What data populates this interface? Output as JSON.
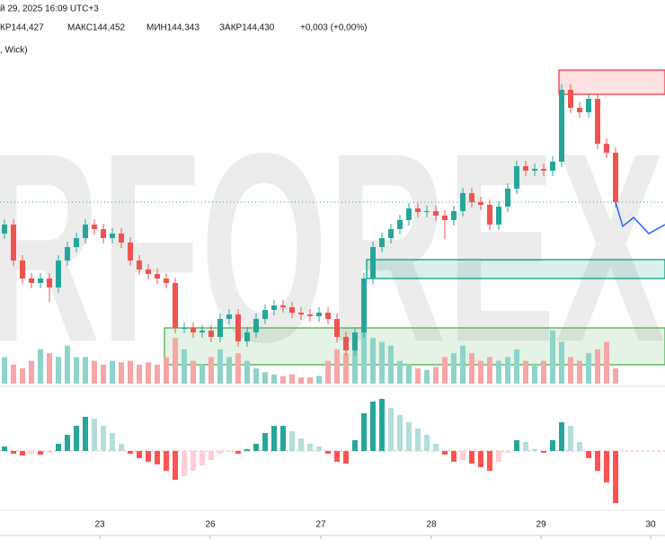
{
  "chart_data": {
    "type": "candlestick",
    "header": {
      "datetime": "й 29, 2025 16:09 UTC+3",
      "ohlc": [
        "КР144,427",
        "МАКС144,452",
        "МИН144,343",
        "ЗАКР144,430"
      ],
      "change": "+0,003 (+0,00%)",
      "subtitle": ", Wick)"
    },
    "watermark": "RFOREX",
    "xlim": [
      -0.5,
      73.5
    ],
    "ylim": [
      143.4,
      145.55
    ],
    "xticks": [
      {
        "value": 10.6,
        "label": "23"
      },
      {
        "value": 22.9,
        "label": "26"
      },
      {
        "value": 35.2,
        "label": "27"
      },
      {
        "value": 47.5,
        "label": "28"
      },
      {
        "value": 59.7,
        "label": "29"
      },
      {
        "value": 71.9,
        "label": "30"
      }
    ],
    "up_color": "#26a69a",
    "down_color": "#ef5350",
    "candles": [
      [
        144.25,
        144.33,
        144.22,
        144.3
      ],
      [
        144.3,
        144.33,
        144.07,
        144.1
      ],
      [
        144.1,
        144.13,
        143.97,
        144.0
      ],
      [
        144.0,
        144.03,
        143.945,
        143.975
      ],
      [
        143.975,
        144.03,
        143.945,
        144.0
      ],
      [
        144.0,
        144.03,
        143.87,
        143.95
      ],
      [
        143.95,
        144.13,
        143.92,
        144.1
      ],
      [
        144.1,
        144.205,
        144.07,
        144.175
      ],
      [
        144.175,
        144.255,
        144.145,
        144.225
      ],
      [
        144.225,
        144.33,
        144.195,
        144.3
      ],
      [
        144.3,
        144.33,
        144.245,
        144.275
      ],
      [
        144.275,
        144.305,
        144.195,
        144.225
      ],
      [
        144.225,
        144.28,
        144.195,
        144.25
      ],
      [
        144.25,
        144.28,
        144.17,
        144.2
      ],
      [
        144.2,
        144.23,
        144.07,
        144.1
      ],
      [
        144.1,
        144.13,
        144.02,
        144.05
      ],
      [
        144.05,
        144.08,
        143.995,
        144.025
      ],
      [
        144.025,
        144.055,
        143.97,
        144.0
      ],
      [
        144.0,
        144.03,
        143.945,
        143.975
      ],
      [
        143.975,
        144.005,
        143.695,
        143.725
      ],
      [
        143.725,
        143.755,
        143.695,
        143.725
      ],
      [
        143.725,
        143.755,
        143.67,
        143.7
      ],
      [
        143.7,
        143.74,
        143.67,
        143.71
      ],
      [
        143.71,
        143.74,
        143.645,
        143.675
      ],
      [
        143.675,
        143.805,
        143.645,
        143.775
      ],
      [
        143.775,
        143.83,
        143.745,
        143.8
      ],
      [
        143.8,
        143.83,
        143.62,
        143.65
      ],
      [
        143.65,
        143.73,
        143.62,
        143.7
      ],
      [
        143.7,
        143.805,
        143.67,
        143.775
      ],
      [
        143.775,
        143.855,
        143.745,
        143.825
      ],
      [
        143.825,
        143.88,
        143.795,
        143.85
      ],
      [
        143.85,
        143.88,
        143.81,
        143.84
      ],
      [
        143.84,
        143.87,
        143.78,
        143.81
      ],
      [
        143.81,
        143.84,
        143.77,
        143.8
      ],
      [
        143.8,
        143.83,
        143.76,
        143.79
      ],
      [
        143.79,
        143.84,
        143.76,
        143.81
      ],
      [
        143.81,
        143.84,
        143.745,
        143.775
      ],
      [
        143.775,
        143.805,
        143.645,
        143.675
      ],
      [
        143.675,
        143.705,
        143.57,
        143.6
      ],
      [
        143.6,
        143.73,
        143.57,
        143.7
      ],
      [
        143.7,
        144.03,
        143.67,
        144.0
      ],
      [
        144.0,
        144.205,
        143.97,
        144.175
      ],
      [
        144.175,
        144.255,
        144.145,
        144.225
      ],
      [
        144.225,
        144.305,
        144.195,
        144.275
      ],
      [
        144.275,
        144.355,
        144.245,
        144.325
      ],
      [
        144.325,
        144.42,
        144.295,
        144.39
      ],
      [
        144.39,
        144.42,
        144.34,
        144.37
      ],
      [
        144.37,
        144.405,
        144.34,
        144.375
      ],
      [
        144.375,
        144.405,
        144.32,
        144.35
      ],
      [
        144.35,
        144.38,
        144.22,
        144.325
      ],
      [
        144.325,
        144.405,
        144.295,
        144.375
      ],
      [
        144.375,
        144.505,
        144.345,
        144.475
      ],
      [
        144.475,
        144.505,
        144.395,
        144.425
      ],
      [
        144.425,
        144.455,
        144.38,
        144.41
      ],
      [
        144.41,
        144.44,
        144.27,
        144.3
      ],
      [
        144.3,
        144.43,
        144.27,
        144.4
      ],
      [
        144.4,
        144.53,
        144.37,
        144.5
      ],
      [
        144.5,
        144.655,
        144.47,
        144.625
      ],
      [
        144.625,
        144.655,
        144.57,
        144.6
      ],
      [
        144.6,
        144.64,
        144.57,
        144.61
      ],
      [
        144.61,
        144.64,
        144.57,
        144.6
      ],
      [
        144.6,
        144.68,
        144.57,
        144.65
      ],
      [
        144.65,
        145.08,
        144.62,
        145.05
      ],
      [
        145.05,
        145.08,
        144.92,
        144.95
      ],
      [
        144.95,
        144.98,
        144.895,
        144.925
      ],
      [
        144.925,
        145.03,
        144.895,
        145.0
      ],
      [
        145.0,
        145.03,
        144.72,
        144.75
      ],
      [
        144.75,
        144.78,
        144.67,
        144.7
      ],
      [
        144.7,
        144.73,
        144.395,
        144.425
      ]
    ],
    "last_price": 144.425,
    "zones": [
      {
        "x0": 61.7,
        "x1": 73.5,
        "y0": 145.025,
        "y1": 145.16,
        "color": "#f23645"
      },
      {
        "x0": 40.3,
        "x1": 73.5,
        "y0": 144.0,
        "y1": 144.105,
        "color": "#089981"
      },
      {
        "x0": 17.8,
        "x1": 73.5,
        "y0": 143.52,
        "y1": 143.725,
        "color": "#4caf50"
      }
    ],
    "forecast": {
      "color": "#2962ff",
      "x": [
        68,
        68.8,
        70,
        71.7,
        73.5
      ],
      "y": [
        144.425,
        144.29,
        144.34,
        144.25,
        144.3
      ]
    },
    "volume_lim": [
      0,
      130
    ],
    "volume_up_color": "#8ed3ca",
    "volume_down_color": "#f6a6a6",
    "volumes": [
      35,
      25,
      20,
      30,
      45,
      40,
      35,
      50,
      35,
      35,
      30,
      25,
      30,
      28,
      30,
      25,
      28,
      25,
      35,
      60,
      45,
      30,
      25,
      35,
      45,
      35,
      40,
      30,
      20,
      15,
      12,
      10,
      12,
      8,
      8,
      10,
      30,
      45,
      40,
      55,
      75,
      60,
      55,
      50,
      30,
      25,
      20,
      18,
      22,
      35,
      40,
      50,
      40,
      30,
      35,
      30,
      35,
      45,
      30,
      25,
      30,
      70,
      55,
      35,
      30,
      40,
      45,
      55,
      20
    ],
    "hist_lim": [
      -60,
      60
    ],
    "hist_colors": [
      "#26a69a",
      "#b2dfdb",
      "#ffcdd2",
      "#ff5252"
    ],
    "histogram": [
      5,
      -3,
      -5,
      -3,
      -4,
      -2,
      8,
      18,
      28,
      38,
      36,
      28,
      20,
      8,
      -3,
      -8,
      -12,
      -15,
      -22,
      -32,
      -28,
      -22,
      -16,
      -10,
      -3,
      -1,
      -3,
      2,
      8,
      20,
      28,
      28,
      22,
      14,
      8,
      5,
      -3,
      -12,
      -14,
      12,
      42,
      55,
      58,
      48,
      40,
      32,
      25,
      18,
      8,
      -4,
      -12,
      -10,
      -14,
      -18,
      -22,
      -12,
      -2,
      12,
      10,
      2,
      -2,
      12,
      32,
      28,
      10,
      -8,
      -22,
      -35,
      -58
    ]
  }
}
